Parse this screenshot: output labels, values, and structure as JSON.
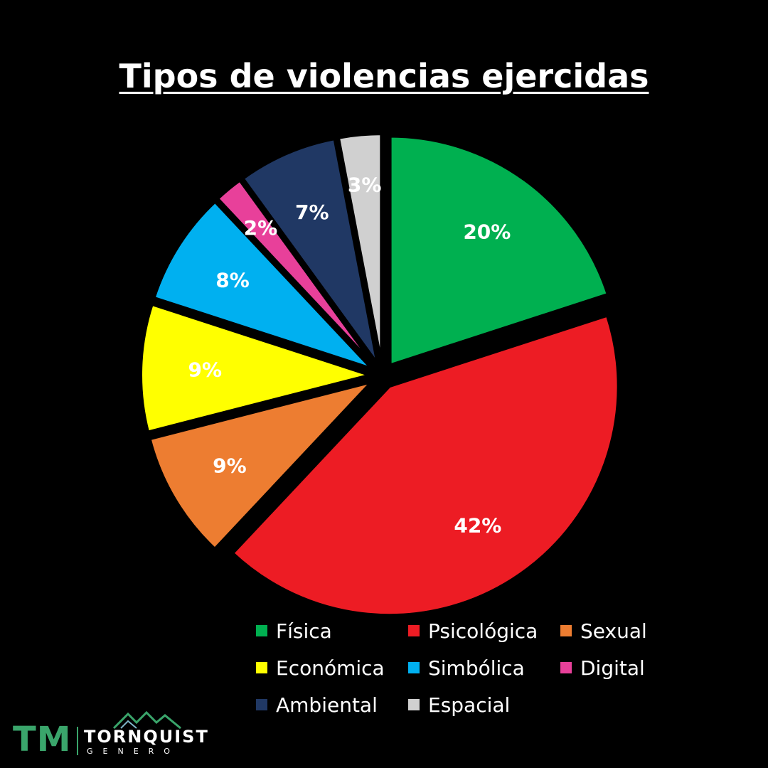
{
  "chart_data": {
    "type": "pie",
    "title": "Tipos de violencias ejercidas",
    "categories": [
      "Física",
      "Psicológica",
      "Sexual",
      "Económica",
      "Simbólica",
      "Digital",
      "Ambiental",
      "Espacial"
    ],
    "values": [
      20,
      42,
      9,
      9,
      8,
      2,
      7,
      3
    ],
    "labels": [
      "20%",
      "42%",
      "9%",
      "9%",
      "8%",
      "2%",
      "7%",
      "3%"
    ],
    "colors": [
      "#00b050",
      "#ed1c24",
      "#ed7d31",
      "#ffff00",
      "#00b0f0",
      "#e8409a",
      "#203864",
      "#d0d0d0"
    ],
    "legend_position": "bottom-right"
  },
  "logo": {
    "mark": "TM",
    "name": "TORNQUIST",
    "subtitle": "GENERO",
    "color": "#3aa56b"
  }
}
